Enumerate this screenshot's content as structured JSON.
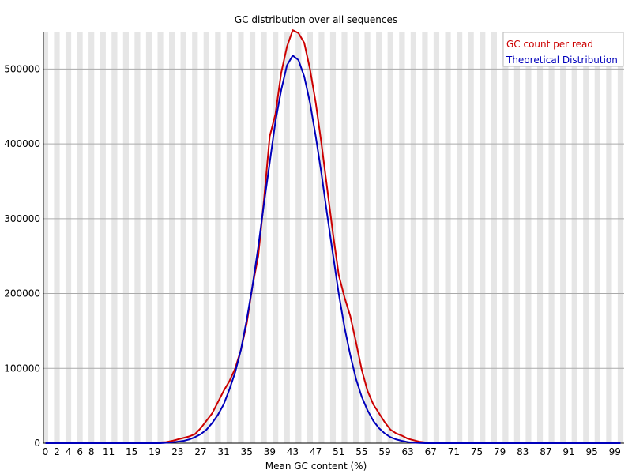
{
  "chart_data": {
    "type": "line",
    "title": "GC distribution over all sequences",
    "xlabel": "Mean GC content (%)",
    "ylabel": "",
    "xlim": [
      0,
      100
    ],
    "ylim": [
      0,
      550000
    ],
    "x_tick_labels": [
      "0",
      "2",
      "4",
      "6",
      "8",
      "11",
      "15",
      "19",
      "23",
      "27",
      "31",
      "35",
      "39",
      "43",
      "47",
      "51",
      "55",
      "59",
      "63",
      "67",
      "71",
      "75",
      "79",
      "83",
      "87",
      "91",
      "95",
      "99"
    ],
    "y_ticks": [
      0,
      100000,
      200000,
      300000,
      400000,
      500000
    ],
    "grid": "horizontal-lines-and-alternating-vertical-bands",
    "legend_position": "top-right",
    "x": [
      0,
      1,
      2,
      3,
      4,
      5,
      6,
      7,
      8,
      9,
      10,
      11,
      12,
      13,
      14,
      15,
      16,
      17,
      18,
      19,
      20,
      21,
      22,
      23,
      24,
      25,
      26,
      27,
      28,
      29,
      30,
      31,
      32,
      33,
      34,
      35,
      36,
      37,
      38,
      39,
      40,
      41,
      42,
      43,
      44,
      45,
      46,
      47,
      48,
      49,
      50,
      51,
      52,
      53,
      54,
      55,
      56,
      57,
      58,
      59,
      60,
      61,
      62,
      63,
      64,
      65,
      66,
      67,
      68,
      69,
      70,
      71,
      72,
      73,
      74,
      75,
      76,
      77,
      78,
      79,
      80,
      81,
      82,
      83,
      84,
      85,
      86,
      87,
      88,
      89,
      90,
      91,
      92,
      93,
      94,
      95,
      96,
      97,
      98,
      99,
      100
    ],
    "series": [
      {
        "name": "GC count per read",
        "color": "#cc0000",
        "values": [
          0,
          0,
          0,
          0,
          0,
          0,
          0,
          0,
          0,
          0,
          0,
          0,
          0,
          0,
          0,
          0,
          0,
          0,
          0,
          500,
          1000,
          1500,
          3000,
          5000,
          7000,
          9000,
          12000,
          20000,
          30000,
          40000,
          55000,
          70000,
          83000,
          100000,
          125000,
          160000,
          210000,
          250000,
          325000,
          410000,
          440000,
          495000,
          530000,
          552000,
          548000,
          535000,
          500000,
          455000,
          400000,
          340000,
          280000,
          225000,
          195000,
          170000,
          135000,
          98000,
          70000,
          52000,
          40000,
          28000,
          18000,
          13000,
          10000,
          6000,
          4000,
          2000,
          1000,
          500,
          0,
          0,
          0,
          0,
          0,
          0,
          0,
          0,
          0,
          0,
          0,
          0,
          0,
          0,
          0,
          0,
          0,
          0,
          0,
          0,
          0,
          0,
          0,
          0,
          0,
          0,
          0,
          0,
          0,
          0,
          0,
          0,
          0
        ]
      },
      {
        "name": "Theoretical Distribution",
        "color": "#0000bb",
        "values": [
          0,
          0,
          0,
          0,
          0,
          0,
          0,
          0,
          0,
          0,
          0,
          0,
          0,
          0,
          0,
          0,
          0,
          0,
          0,
          0,
          0,
          500,
          1000,
          2000,
          3000,
          5000,
          8000,
          12000,
          18000,
          27000,
          38000,
          52000,
          72000,
          95000,
          125000,
          165000,
          210000,
          262000,
          320000,
          375000,
          430000,
          472000,
          505000,
          518000,
          512000,
          490000,
          455000,
          410000,
          360000,
          305000,
          252000,
          200000,
          155000,
          118000,
          86000,
          62000,
          44000,
          30000,
          20000,
          13000,
          8000,
          5000,
          3000,
          1500,
          700,
          300,
          0,
          0,
          0,
          0,
          0,
          0,
          0,
          0,
          0,
          0,
          0,
          0,
          0,
          0,
          0,
          0,
          0,
          0,
          0,
          0,
          0,
          0,
          0,
          0,
          0,
          0,
          0,
          0,
          0,
          0,
          0,
          0,
          0,
          0,
          0
        ]
      }
    ]
  }
}
